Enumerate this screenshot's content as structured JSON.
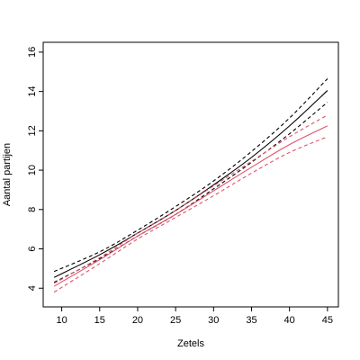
{
  "chart_data": {
    "type": "line",
    "xlabel": "Zetels",
    "ylabel": "Aantal partijen",
    "xlim": [
      7.56,
      46.44
    ],
    "ylim": [
      3.05,
      16.5
    ],
    "x_ticks": [
      10,
      15,
      20,
      25,
      30,
      35,
      40,
      45
    ],
    "y_ticks": [
      4,
      6,
      8,
      10,
      12,
      14,
      16
    ],
    "grid": false,
    "x": [
      9,
      15,
      20,
      25,
      30,
      35,
      40,
      45
    ],
    "series": [
      {
        "color": "#000000",
        "dash": "solid",
        "values": [
          4.55,
          5.7,
          6.8,
          7.95,
          9.25,
          10.65,
          12.25,
          14.05
        ]
      },
      {
        "color": "#000000",
        "dash": "dashed",
        "values": [
          4.85,
          5.85,
          6.95,
          8.15,
          9.45,
          10.95,
          12.65,
          14.65
        ]
      },
      {
        "color": "#000000",
        "dash": "dashed",
        "values": [
          4.3,
          5.5,
          6.65,
          7.75,
          9.05,
          10.4,
          11.85,
          13.45
        ]
      },
      {
        "color": "#df536b",
        "dash": "solid",
        "values": [
          4.1,
          5.45,
          6.65,
          7.75,
          8.95,
          10.15,
          11.3,
          12.25
        ]
      },
      {
        "color": "#df536b",
        "dash": "dashed",
        "values": [
          4.25,
          5.55,
          6.8,
          7.95,
          9.2,
          10.45,
          11.7,
          12.8
        ]
      },
      {
        "color": "#df536b",
        "dash": "dashed",
        "values": [
          3.8,
          5.25,
          6.5,
          7.6,
          8.7,
          9.85,
          10.9,
          11.7
        ]
      }
    ]
  }
}
